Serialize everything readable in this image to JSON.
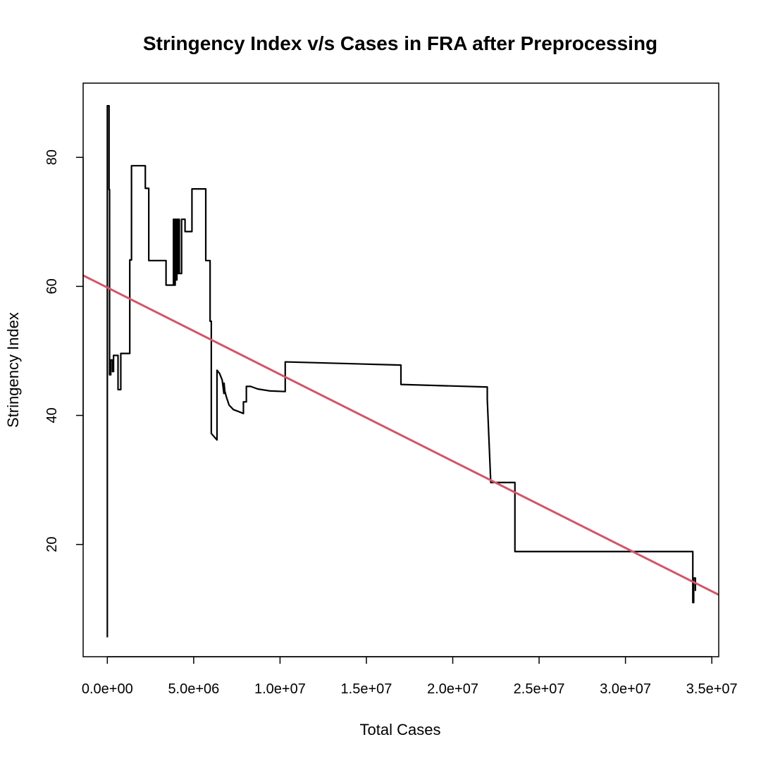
{
  "chart_data": {
    "type": "line",
    "title": "Stringency Index v/s Cases in FRA after Preprocessing",
    "xlabel": "Total Cases",
    "ylabel": "Stringency Index",
    "xlim": [
      -1400000,
      35400000
    ],
    "ylim": [
      2.6,
      91.5
    ],
    "x_ticks": [
      0,
      5000000,
      10000000,
      15000000,
      20000000,
      25000000,
      30000000,
      35000000
    ],
    "x_tick_labels": [
      "0.0e+00",
      "5.0e+06",
      "1.0e+07",
      "1.5e+07",
      "2.0e+07",
      "2.5e+07",
      "3.0e+07",
      "3.5e+07"
    ],
    "y_ticks": [
      20,
      40,
      60,
      80
    ],
    "y_tick_labels": [
      "20",
      "40",
      "60",
      "80"
    ],
    "grid": false,
    "legend": "none",
    "series": [
      {
        "style": "step-line",
        "color": "#000000",
        "points": [
          [
            0,
            5.6
          ],
          [
            0,
            88.0
          ],
          [
            100000,
            88.0
          ],
          [
            100000,
            75.0
          ],
          [
            130000,
            75.0
          ],
          [
            130000,
            46.3
          ],
          [
            200000,
            46.3
          ],
          [
            200000,
            48.6
          ],
          [
            300000,
            48.6
          ],
          [
            300000,
            46.8
          ],
          [
            360000,
            46.8
          ],
          [
            360000,
            49.3
          ],
          [
            620000,
            49.3
          ],
          [
            620000,
            44.0
          ],
          [
            780000,
            44.0
          ],
          [
            780000,
            49.6
          ],
          [
            1300000,
            49.6
          ],
          [
            1300000,
            64.1
          ],
          [
            1400000,
            64.1
          ],
          [
            1400000,
            78.7
          ],
          [
            2200000,
            78.7
          ],
          [
            2200000,
            75.2
          ],
          [
            2400000,
            75.2
          ],
          [
            2400000,
            64.0
          ],
          [
            3400000,
            64.0
          ],
          [
            3400000,
            60.2
          ],
          [
            3830000,
            60.2
          ],
          [
            3830000,
            70.4
          ],
          [
            3870000,
            70.4
          ],
          [
            3870000,
            60.2
          ],
          [
            3930000,
            60.2
          ],
          [
            3930000,
            70.4
          ],
          [
            3970000,
            70.4
          ],
          [
            3970000,
            61.0
          ],
          [
            4030000,
            61.0
          ],
          [
            4030000,
            70.4
          ],
          [
            4070000,
            70.4
          ],
          [
            4070000,
            62.0
          ],
          [
            4130000,
            62.0
          ],
          [
            4130000,
            70.4
          ],
          [
            4170000,
            70.4
          ],
          [
            4170000,
            62.0
          ],
          [
            4300000,
            62.0
          ],
          [
            4300000,
            70.4
          ],
          [
            4500000,
            70.4
          ],
          [
            4500000,
            68.5
          ],
          [
            4900000,
            68.5
          ],
          [
            4900000,
            75.1
          ],
          [
            5700000,
            75.1
          ],
          [
            5700000,
            64.0
          ],
          [
            5950000,
            64.0
          ],
          [
            5950000,
            54.6
          ],
          [
            6020000,
            54.6
          ],
          [
            6020000,
            37.2
          ],
          [
            6350000,
            36.2
          ],
          [
            6350000,
            47.0
          ],
          [
            6500000,
            46.5
          ],
          [
            6650000,
            45.5
          ],
          [
            6750000,
            43.4
          ],
          [
            6760000,
            45.0
          ],
          [
            6800000,
            43.8
          ],
          [
            6900000,
            42.8
          ],
          [
            7050000,
            41.6
          ],
          [
            7300000,
            40.9
          ],
          [
            7600000,
            40.6
          ],
          [
            7880000,
            40.3
          ],
          [
            7880000,
            42.1
          ],
          [
            8050000,
            42.1
          ],
          [
            8050000,
            44.5
          ],
          [
            8300000,
            44.5
          ],
          [
            8700000,
            44.1
          ],
          [
            9400000,
            43.8
          ],
          [
            10300000,
            43.7
          ],
          [
            10300000,
            48.3
          ],
          [
            17000000,
            47.8
          ],
          [
            17000000,
            44.8
          ],
          [
            22000000,
            44.4
          ],
          [
            22000000,
            42.5
          ],
          [
            22200000,
            29.6
          ],
          [
            23600000,
            29.6
          ],
          [
            23600000,
            18.9
          ],
          [
            33900000,
            18.9
          ],
          [
            33900000,
            11.0
          ],
          [
            33950000,
            11.0
          ],
          [
            33950000,
            14.8
          ],
          [
            34050000,
            14.8
          ],
          [
            34050000,
            12.8
          ]
        ]
      },
      {
        "style": "regression-line",
        "color": "#D2556A",
        "points": [
          [
            -1400000,
            61.7
          ],
          [
            35400000,
            12.2
          ]
        ]
      }
    ]
  }
}
